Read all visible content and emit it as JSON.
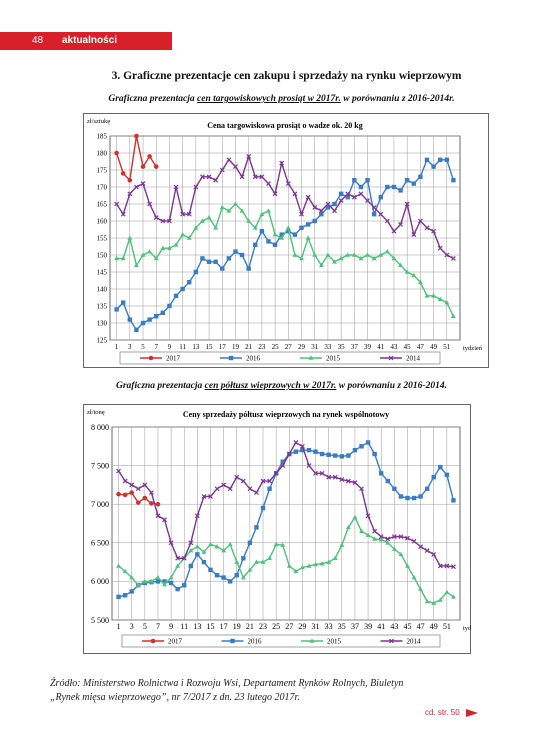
{
  "header": {
    "page": "48",
    "section": "aktualności"
  },
  "heading": "3. Graficzne prezentacje cen zakupu i sprzedaży na rynku wieprzowym",
  "captions": [
    {
      "before": "Graficzna prezentacja",
      "underlined": "cen targowiskowych prosiąt w 2017r.",
      "after": "w porównaniu z 2016-2014r."
    },
    {
      "before": "Graficzna prezentacja",
      "underlined": "cen półtusz wieprzowych w 2017r.",
      "after": "w porównaniu z 2016-2014."
    }
  ],
  "chart_data": [
    {
      "type": "line",
      "title": "Cena targowiskowa prosiąt o wadze ok. 20 kg",
      "y_label": "zł/sztukę",
      "x_label": "tydzień",
      "x": [
        1,
        2,
        3,
        4,
        5,
        6,
        7,
        8,
        9,
        10,
        11,
        12,
        13,
        14,
        15,
        16,
        17,
        18,
        19,
        20,
        21,
        22,
        23,
        24,
        25,
        26,
        27,
        28,
        29,
        30,
        31,
        32,
        33,
        34,
        35,
        36,
        37,
        38,
        39,
        40,
        41,
        42,
        43,
        44,
        45,
        46,
        47,
        48,
        49,
        50,
        51,
        52
      ],
      "xlim": [
        0,
        53
      ],
      "xticks": [
        1,
        3,
        5,
        7,
        9,
        11,
        13,
        15,
        17,
        19,
        21,
        23,
        25,
        27,
        29,
        31,
        33,
        35,
        37,
        39,
        41,
        43,
        45,
        47,
        49,
        51
      ],
      "ylim": [
        125,
        185
      ],
      "yticks": [
        125,
        130,
        135,
        140,
        145,
        150,
        155,
        160,
        165,
        170,
        175,
        180,
        185
      ],
      "grid": true,
      "legend": "bottom",
      "series": [
        {
          "name": "2017",
          "color": "#d0312d",
          "marker": "circle",
          "values": [
            180,
            174,
            172,
            185,
            176,
            179,
            176,
            null,
            null,
            null,
            null,
            null,
            null,
            null,
            null,
            null,
            null,
            null,
            null,
            null,
            null,
            null,
            null,
            null,
            null,
            null,
            null,
            null,
            null,
            null,
            null,
            null,
            null,
            null,
            null,
            null,
            null,
            null,
            null,
            null,
            null,
            null,
            null,
            null,
            null,
            null,
            null,
            null,
            null,
            null,
            null,
            null
          ]
        },
        {
          "name": "2016",
          "color": "#3a7cc4",
          "marker": "square",
          "values": [
            134,
            136,
            131,
            128,
            130,
            131,
            132,
            133,
            135,
            138,
            140,
            142,
            145,
            149,
            148,
            148,
            146,
            149,
            151,
            150,
            146,
            153,
            157,
            154,
            153,
            156,
            157,
            156,
            158,
            159,
            160,
            162,
            164,
            165,
            168,
            167,
            172,
            170,
            172,
            162,
            167,
            170,
            170,
            169,
            172,
            171,
            173,
            178,
            176,
            178,
            178,
            172
          ]
        },
        {
          "name": "2015",
          "color": "#4cc27a",
          "marker": "triangle",
          "values": [
            149,
            149,
            155,
            147,
            150,
            151,
            149,
            152,
            152,
            153,
            156,
            155,
            158,
            160,
            161,
            158,
            164,
            163,
            165,
            163,
            160,
            158,
            162,
            163,
            156,
            155,
            158,
            150,
            149,
            155,
            150,
            147,
            150,
            148,
            149,
            150,
            150,
            149,
            150,
            149,
            150,
            151,
            149,
            147,
            145,
            144,
            142,
            138,
            138,
            137,
            136,
            132
          ]
        },
        {
          "name": "2014",
          "color": "#7b3596",
          "marker": "cross",
          "values": [
            165,
            162,
            168,
            170,
            171,
            165,
            161,
            160,
            160,
            170,
            162,
            162,
            170,
            173,
            173,
            172,
            175,
            178,
            176,
            173,
            179,
            173,
            173,
            171,
            168,
            177,
            171,
            168,
            162,
            167,
            164,
            163,
            165,
            163,
            166,
            168,
            167,
            168,
            166,
            164,
            162,
            160,
            157,
            159,
            165,
            156,
            160,
            158,
            157,
            152,
            150,
            149
          ]
        }
      ]
    },
    {
      "type": "line",
      "title": "Ceny sprzedaży półtusz wieprzowych na rynek wspólnotowy",
      "y_label": "zł/tonę",
      "x_label": "tydzień",
      "x": [
        1,
        2,
        3,
        4,
        5,
        6,
        7,
        8,
        9,
        10,
        11,
        12,
        13,
        14,
        15,
        16,
        17,
        18,
        19,
        20,
        21,
        22,
        23,
        24,
        25,
        26,
        27,
        28,
        29,
        30,
        31,
        32,
        33,
        34,
        35,
        36,
        37,
        38,
        39,
        40,
        41,
        42,
        43,
        44,
        45,
        46,
        47,
        48,
        49,
        50,
        51,
        52
      ],
      "xlim": [
        0,
        53
      ],
      "xticks": [
        1,
        3,
        5,
        7,
        9,
        11,
        13,
        15,
        17,
        19,
        21,
        23,
        25,
        27,
        29,
        31,
        33,
        35,
        37,
        39,
        41,
        43,
        45,
        47,
        49,
        51
      ],
      "ylim": [
        5500,
        8000
      ],
      "yticks": [
        {
          "value": 5500,
          "label": "5 500"
        },
        {
          "value": 6000,
          "label": "6 000"
        },
        {
          "value": 6500,
          "label": "6 500"
        },
        {
          "value": 7000,
          "label": "7 000"
        },
        {
          "value": 7500,
          "label": "7 500"
        },
        {
          "value": 8000,
          "label": "8 000"
        }
      ],
      "grid": true,
      "legend": "bottom",
      "series": [
        {
          "name": "2017",
          "color": "#d0312d",
          "marker": "circle",
          "values": [
            7130,
            7120,
            7150,
            7020,
            7080,
            7010,
            7000,
            null,
            null,
            null,
            null,
            null,
            null,
            null,
            null,
            null,
            null,
            null,
            null,
            null,
            null,
            null,
            null,
            null,
            null,
            null,
            null,
            null,
            null,
            null,
            null,
            null,
            null,
            null,
            null,
            null,
            null,
            null,
            null,
            null,
            null,
            null,
            null,
            null,
            null,
            null,
            null,
            null,
            null,
            null,
            null,
            null
          ]
        },
        {
          "name": "2016",
          "color": "#3a7cc4",
          "marker": "square",
          "values": [
            5800,
            5820,
            5870,
            5950,
            5980,
            5990,
            6000,
            6000,
            5980,
            5900,
            5950,
            6200,
            6350,
            6250,
            6150,
            6080,
            6050,
            6000,
            6080,
            6300,
            6500,
            6700,
            6950,
            7200,
            7400,
            7550,
            7650,
            7680,
            7700,
            7700,
            7680,
            7650,
            7640,
            7630,
            7620,
            7630,
            7700,
            7750,
            7800,
            7650,
            7400,
            7300,
            7200,
            7100,
            7080,
            7080,
            7100,
            7200,
            7350,
            7480,
            7380,
            7050
          ]
        },
        {
          "name": "2015",
          "color": "#4cc27a",
          "marker": "triangle",
          "values": [
            6200,
            6130,
            6050,
            5950,
            6000,
            6000,
            6050,
            5960,
            6050,
            6200,
            6300,
            6400,
            6450,
            6380,
            6480,
            6450,
            6400,
            6480,
            6250,
            6050,
            6150,
            6250,
            6250,
            6300,
            6480,
            6470,
            6200,
            6130,
            6180,
            6200,
            6220,
            6230,
            6250,
            6300,
            6470,
            6700,
            6830,
            6650,
            6600,
            6550,
            6540,
            6500,
            6420,
            6350,
            6200,
            6050,
            5900,
            5740,
            5720,
            5760,
            5860,
            5800
          ]
        },
        {
          "name": "2014",
          "color": "#7b3596",
          "marker": "cross",
          "values": [
            7430,
            7300,
            7250,
            7200,
            7250,
            7150,
            6850,
            6800,
            6500,
            6300,
            6300,
            6500,
            6850,
            7100,
            7100,
            7200,
            7250,
            7200,
            7350,
            7300,
            7200,
            7150,
            7300,
            7300,
            7400,
            7500,
            7650,
            7800,
            7750,
            7500,
            7400,
            7400,
            7350,
            7350,
            7320,
            7300,
            7280,
            7200,
            6850,
            6650,
            6580,
            6550,
            6580,
            6580,
            6560,
            6520,
            6450,
            6400,
            6350,
            6200,
            6200,
            6190
          ]
        }
      ]
    }
  ],
  "source": [
    "Źródło: Ministerstwo Rolnictwa i Rozwoju Wsi, Departament Rynków Rolnych, Biuletyn",
    "„Rynek mięsa wieprzowego”, nr 7/2017 z dn. 23 lutego 2017r."
  ],
  "footer": "cd. str. 50"
}
